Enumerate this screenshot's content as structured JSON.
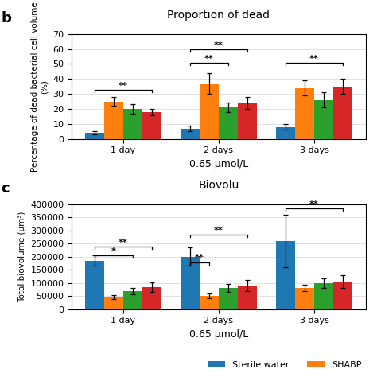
{
  "chart_data": [
    {
      "type": "bar",
      "title": "Proportion of dead",
      "panel_label": "b",
      "x_label": "0.65 μmol/L",
      "y_label": "Percentage of dead bacterial cell volume (%)",
      "categories": [
        "1 day",
        "2 days",
        "3 days"
      ],
      "series": [
        {
          "name": "Sterile water",
          "values": [
            4,
            7,
            8
          ],
          "errors": [
            1,
            2,
            2
          ]
        },
        {
          "name": "SHABP",
          "values": [
            25,
            37,
            34
          ],
          "errors": [
            3,
            7,
            5
          ]
        },
        {
          "values": [
            20,
            21,
            26
          ],
          "errors": [
            3,
            3,
            5
          ]
        },
        {
          "values": [
            18,
            24,
            35
          ],
          "errors": [
            2,
            4,
            5
          ]
        }
      ],
      "ylim": [
        0,
        70
      ],
      "yticks": [
        0,
        10,
        20,
        30,
        40,
        50,
        60,
        70
      ],
      "grid": true,
      "legend": "lower right",
      "annotations": [
        {
          "text": "**",
          "category": 0,
          "from_series": 0,
          "to_series": 3,
          "y": 31
        },
        {
          "text": "**",
          "category": 1,
          "from_series": 0,
          "to_series": 3,
          "y": 58
        },
        {
          "text": "**",
          "category": 1,
          "from_series": 0,
          "to_series": 2,
          "y": 49
        },
        {
          "text": "**",
          "category": 2,
          "from_series": 0,
          "to_series": 3,
          "y": 49
        }
      ]
    },
    {
      "type": "bar",
      "title": "Biovolu",
      "panel_label": "c",
      "x_label": "0.65 μmol/L",
      "y_label": "Total biovolume (μm³)",
      "categories": [
        "1 day",
        "2 days",
        "3 days"
      ],
      "series": [
        {
          "name": "Sterile water",
          "values": [
            185000,
            200000,
            260000
          ],
          "errors": [
            20000,
            35000,
            100000
          ]
        },
        {
          "name": "SHABP",
          "values": [
            45000,
            50000,
            80000
          ],
          "errors": [
            8000,
            10000,
            12000
          ]
        },
        {
          "values": [
            70000,
            80000,
            100000
          ],
          "errors": [
            12000,
            15000,
            18000
          ]
        },
        {
          "values": [
            85000,
            90000,
            105000
          ],
          "errors": [
            18000,
            22000,
            25000
          ]
        }
      ],
      "ylim": [
        0,
        400000
      ],
      "yticks": [
        0,
        50000,
        100000,
        150000,
        200000,
        250000,
        300000,
        350000,
        400000
      ],
      "grid": true,
      "legend": "lower right",
      "annotations": [
        {
          "text": "**",
          "category": 0,
          "from_series": 0,
          "to_series": 3,
          "y": 230000
        },
        {
          "text": "*",
          "category": 0,
          "from_series": 0,
          "to_series": 2,
          "y": 195000
        },
        {
          "text": "**",
          "category": 1,
          "from_series": 0,
          "to_series": 3,
          "y": 275000
        },
        {
          "text": "**",
          "category": 1,
          "from_series": 0,
          "to_series": 1,
          "y": 170000
        },
        {
          "text": "**",
          "category": 2,
          "from_series": 0,
          "to_series": 3,
          "y": 375000
        }
      ]
    }
  ]
}
